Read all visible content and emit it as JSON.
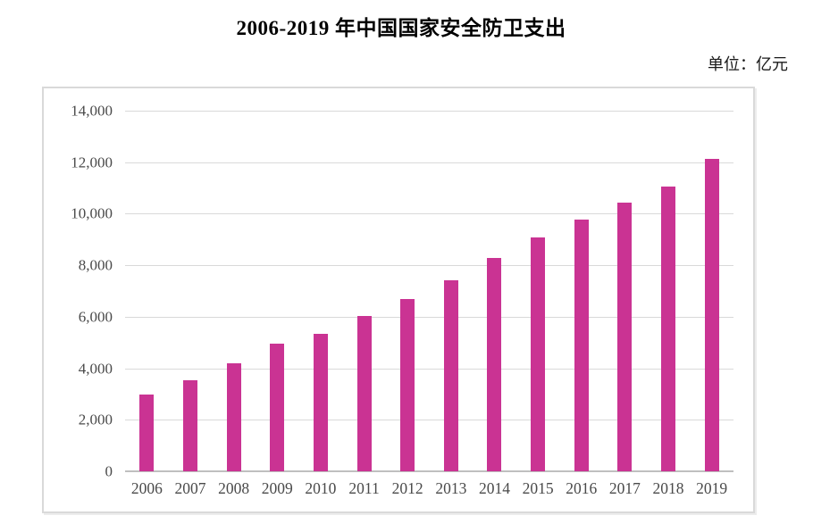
{
  "page": {
    "title": "2006-2019 年中国国家安全防卫支出",
    "unit_label": "单位：亿元"
  },
  "chart_data": {
    "type": "bar",
    "title": "2006-2019 年中国国家安全防卫支出",
    "unit_label": "单位：亿元",
    "categories": [
      "2006",
      "2007",
      "2008",
      "2009",
      "2010",
      "2011",
      "2012",
      "2013",
      "2014",
      "2015",
      "2016",
      "2017",
      "2018",
      "2019"
    ],
    "values": [
      2980,
      3550,
      4180,
      4950,
      5330,
      6030,
      6700,
      7410,
      8290,
      9090,
      9780,
      10440,
      11070,
      12120
    ],
    "xlabel": "",
    "ylabel": "",
    "ylim": [
      0,
      14000
    ],
    "ytick_step": 2000,
    "ytick_labels": [
      "0",
      "2,000",
      "4,000",
      "6,000",
      "8,000",
      "10,000",
      "12,000",
      "14,000"
    ],
    "grid": true,
    "legend": false,
    "colors": {
      "bar": "#CA3393",
      "gridline": "#D9D9D9",
      "axis_line": "#BFBFBF",
      "tick_text": "#4A4A4A",
      "title_text": "#000000",
      "box_border": "#D9D9D9"
    }
  }
}
